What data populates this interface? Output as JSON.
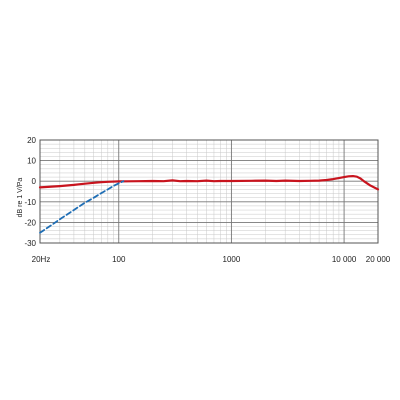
{
  "chart_data": {
    "type": "line",
    "title": "",
    "xlabel": "",
    "ylabel": "dB re 1 V/Pa",
    "xscale": "log",
    "xlim": [
      20,
      20000
    ],
    "ylim": [
      -30,
      20
    ],
    "grid": true,
    "x_ticks": [
      {
        "value": 20,
        "label": "20Hz"
      },
      {
        "value": 100,
        "label": "100"
      },
      {
        "value": 1000,
        "label": "1000"
      },
      {
        "value": 10000,
        "label": "10 000"
      },
      {
        "value": 20000,
        "label": "20 000"
      }
    ],
    "y_ticks": [
      {
        "value": 20,
        "label": "20"
      },
      {
        "value": 10,
        "label": "10"
      },
      {
        "value": 0,
        "label": "0"
      },
      {
        "value": -10,
        "label": "-10"
      },
      {
        "value": -20,
        "label": "-20"
      },
      {
        "value": -30,
        "label": "-30"
      }
    ],
    "series": [
      {
        "style": "solid",
        "color": "#c8141e",
        "x": [
          20,
          30,
          40,
          50,
          60,
          70,
          80,
          100,
          150,
          200,
          250,
          300,
          350,
          400,
          500,
          600,
          700,
          800,
          1000,
          1500,
          2000,
          2500,
          3000,
          4000,
          5000,
          6000,
          7000,
          8000,
          9000,
          10000,
          11000,
          12000,
          13000,
          14000,
          15000,
          17000,
          20000
        ],
        "y": [
          -3,
          -2.4,
          -1.8,
          -1.2,
          -0.8,
          -0.5,
          -0.3,
          -0.1,
          0,
          0.1,
          0,
          0.4,
          0,
          0.1,
          0,
          0.3,
          0,
          0.1,
          0.1,
          0.2,
          0.3,
          0.1,
          0.3,
          0.1,
          0.2,
          0.3,
          0.6,
          1,
          1.5,
          2,
          2.4,
          2.5,
          2.2,
          1.3,
          0,
          -2,
          -4
        ]
      },
      {
        "style": "dashed",
        "color": "#1f6eb5",
        "x": [
          20,
          25,
          30,
          40,
          50,
          60,
          70,
          80,
          90,
          100,
          110
        ],
        "y": [
          -25,
          -21.5,
          -18.5,
          -14,
          -10.5,
          -8,
          -5.8,
          -4,
          -2.3,
          -1,
          0
        ]
      }
    ]
  }
}
